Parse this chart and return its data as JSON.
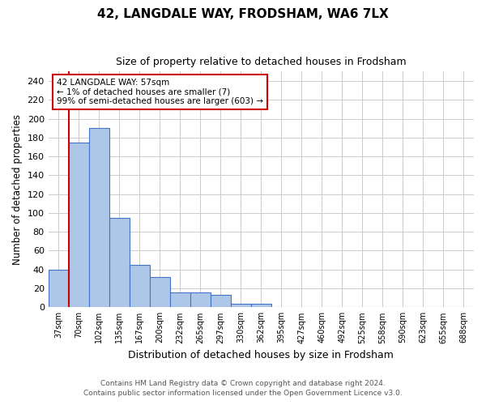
{
  "title": "42, LANGDALE WAY, FRODSHAM, WA6 7LX",
  "subtitle": "Size of property relative to detached houses in Frodsham",
  "xlabel": "Distribution of detached houses by size in Frodsham",
  "ylabel": "Number of detached properties",
  "categories": [
    "37sqm",
    "70sqm",
    "102sqm",
    "135sqm",
    "167sqm",
    "200sqm",
    "232sqm",
    "265sqm",
    "297sqm",
    "330sqm",
    "362sqm",
    "395sqm",
    "427sqm",
    "460sqm",
    "492sqm",
    "525sqm",
    "558sqm",
    "590sqm",
    "623sqm",
    "655sqm",
    "688sqm"
  ],
  "values": [
    40,
    175,
    190,
    95,
    45,
    32,
    16,
    16,
    13,
    4,
    4,
    0,
    0,
    0,
    0,
    0,
    0,
    0,
    0,
    0,
    0
  ],
  "bar_color": "#aec6e8",
  "bar_edge_color": "#4472c4",
  "annotation_text": "42 LANGDALE WAY: 57sqm\n← 1% of detached houses are smaller (7)\n99% of semi-detached houses are larger (603) →",
  "annotation_box_color": "#ffffff",
  "annotation_box_edge_color": "#cc0000",
  "red_line_x": 0.5,
  "ylim": [
    0,
    250
  ],
  "yticks": [
    0,
    20,
    40,
    60,
    80,
    100,
    120,
    140,
    160,
    180,
    200,
    220,
    240
  ],
  "footer_line1": "Contains HM Land Registry data © Crown copyright and database right 2024.",
  "footer_line2": "Contains public sector information licensed under the Open Government Licence v3.0.",
  "background_color": "#ffffff",
  "grid_color": "#cccccc"
}
